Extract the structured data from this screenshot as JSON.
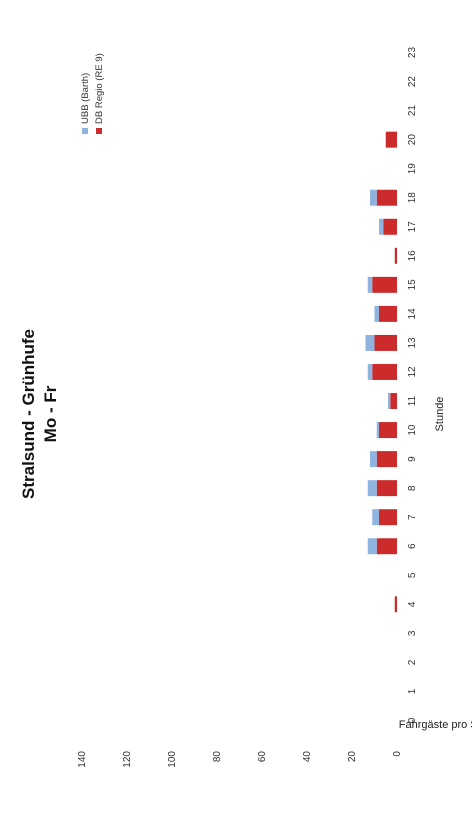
{
  "chart_data": {
    "type": "bar",
    "stacked": true,
    "orientation": "rotated-90",
    "title": [
      "Stralsund - Grünhufe",
      "Mo - Fr"
    ],
    "xlabel": "Stunde",
    "ylabel": "Fahrgäste pro Stunde",
    "categories": [
      "0",
      "1",
      "2",
      "3",
      "4",
      "5",
      "6",
      "7",
      "8",
      "9",
      "10",
      "11",
      "12",
      "13",
      "14",
      "15",
      "16",
      "17",
      "18",
      "19",
      "20",
      "21",
      "22",
      "23"
    ],
    "ylim": [
      0,
      140
    ],
    "yticks": [
      "0",
      "20",
      "40",
      "60",
      "80",
      "100",
      "120",
      "140"
    ],
    "grid": false,
    "legend_position": "top-right",
    "series": [
      {
        "name": "DB Regio (RE 9)",
        "color": "#cc2b2b",
        "values": [
          0,
          0,
          0,
          0,
          1,
          0,
          9,
          8,
          9,
          9,
          8,
          3,
          11,
          10,
          8,
          11,
          1,
          6,
          9,
          0,
          5,
          0,
          0,
          0
        ]
      },
      {
        "name": "UBB (Barth)",
        "color": "#8fb4e0",
        "values": [
          0,
          0,
          0,
          0,
          0,
          0,
          4,
          3,
          4,
          3,
          1,
          1,
          2,
          4,
          2,
          2,
          0,
          2,
          3,
          0,
          0,
          0,
          0,
          0
        ]
      }
    ]
  }
}
